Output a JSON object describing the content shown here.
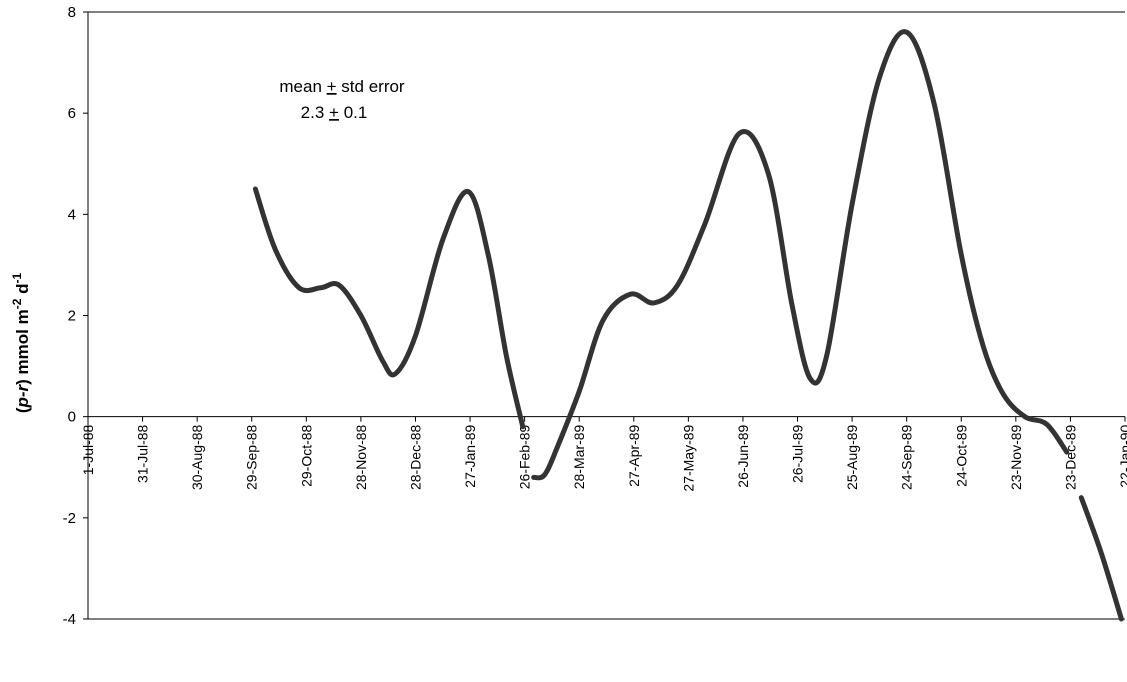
{
  "chart_data": {
    "type": "line",
    "title": "",
    "xlabel": "",
    "ylabel": {
      "pre": "(",
      "italic": "p-r",
      "mid": ") mmol m",
      "sup1": "-2",
      "mid2": " d",
      "sup2": "-1"
    },
    "annotation": {
      "line1_pre": "mean ",
      "line1_pm": "+",
      "line1_post": " std error",
      "line2_pre": "2.3 ",
      "line2_pm": "+",
      "line2_post": " 0.1"
    },
    "ylim": [
      -4,
      8
    ],
    "yticks": [
      -4,
      -2,
      0,
      2,
      4,
      6,
      8
    ],
    "ytick_labels": [
      "-4",
      "-2",
      "0",
      "2",
      "4",
      "6",
      "8"
    ],
    "xlim": [
      "1988-07-01",
      "1990-01-22"
    ],
    "xticks": [
      "1988-07-01",
      "1988-07-31",
      "1988-08-30",
      "1988-09-29",
      "1988-10-29",
      "1988-11-28",
      "1988-12-28",
      "1989-01-27",
      "1989-02-26",
      "1989-03-28",
      "1989-04-27",
      "1989-05-27",
      "1989-06-26",
      "1989-07-26",
      "1989-08-25",
      "1989-09-24",
      "1989-10-24",
      "1989-11-23",
      "1989-12-23",
      "1990-01-22"
    ],
    "xtick_labels": [
      "1-Jul-88",
      "31-Jul-88",
      "30-Aug-88",
      "29-Sep-88",
      "29-Oct-88",
      "28-Nov-88",
      "28-Dec-88",
      "27-Jan-89",
      "26-Feb-89",
      "28-Mar-89",
      "27-Apr-89",
      "27-May-89",
      "26-Jun-89",
      "26-Jul-89",
      "25-Aug-89",
      "24-Sep-89",
      "24-Oct-89",
      "23-Nov-89",
      "23-Dec-89",
      "22-Jan-90"
    ],
    "grid": false,
    "legend": "none",
    "series": [
      {
        "color": "#333333",
        "segments": [
          [
            {
              "x": "1988-10-01",
              "y": 4.5
            },
            {
              "x": "1988-10-12",
              "y": 3.3
            },
            {
              "x": "1988-10-25",
              "y": 2.55
            },
            {
              "x": "1988-11-06",
              "y": 2.55
            },
            {
              "x": "1988-11-16",
              "y": 2.6
            },
            {
              "x": "1988-11-28",
              "y": 2.0
            },
            {
              "x": "1988-12-10",
              "y": 1.1
            },
            {
              "x": "1988-12-17",
              "y": 0.85
            },
            {
              "x": "1988-12-28",
              "y": 1.6
            },
            {
              "x": "1989-01-12",
              "y": 3.5
            },
            {
              "x": "1989-01-26",
              "y": 4.45
            },
            {
              "x": "1989-02-06",
              "y": 3.2
            },
            {
              "x": "1989-02-16",
              "y": 1.2
            },
            {
              "x": "1989-02-25",
              "y": -0.2
            }
          ],
          [
            {
              "x": "1989-03-03",
              "y": -1.2
            },
            {
              "x": "1989-03-09",
              "y": -1.15
            },
            {
              "x": "1989-03-16",
              "y": -0.6
            },
            {
              "x": "1989-03-28",
              "y": 0.5
            },
            {
              "x": "1989-04-10",
              "y": 1.9
            },
            {
              "x": "1989-04-25",
              "y": 2.42
            },
            {
              "x": "1989-05-08",
              "y": 2.25
            },
            {
              "x": "1989-05-21",
              "y": 2.6
            },
            {
              "x": "1989-06-05",
              "y": 3.8
            },
            {
              "x": "1989-06-24",
              "y": 5.6
            },
            {
              "x": "1989-07-10",
              "y": 4.8
            },
            {
              "x": "1989-07-23",
              "y": 2.2
            },
            {
              "x": "1989-08-02",
              "y": 0.75
            },
            {
              "x": "1989-08-11",
              "y": 1.2
            },
            {
              "x": "1989-08-25",
              "y": 4.2
            },
            {
              "x": "1989-09-09",
              "y": 6.7
            },
            {
              "x": "1989-09-24",
              "y": 7.6
            },
            {
              "x": "1989-10-09",
              "y": 6.2
            },
            {
              "x": "1989-10-24",
              "y": 3.2
            },
            {
              "x": "1989-11-05",
              "y": 1.4
            },
            {
              "x": "1989-11-16",
              "y": 0.45
            },
            {
              "x": "1989-11-28",
              "y": 0.0
            },
            {
              "x": "1989-12-10",
              "y": -0.15
            },
            {
              "x": "1989-12-21",
              "y": -0.7
            }
          ],
          [
            {
              "x": "1989-12-29",
              "y": -1.6
            },
            {
              "x": "1990-01-09",
              "y": -2.7
            },
            {
              "x": "1990-01-20",
              "y": -4.0
            }
          ]
        ]
      }
    ]
  }
}
